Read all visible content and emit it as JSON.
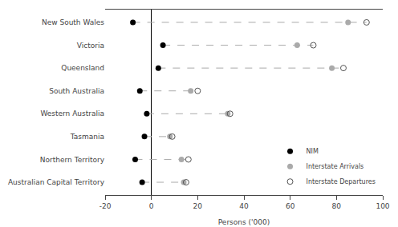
{
  "chart_data": {
    "type": "dot",
    "categories": [
      "New South Wales",
      "Victoria",
      "Queensland",
      "South Australia",
      "Western Australia",
      "Tasmania",
      "Northern Territory",
      "Australian Capital Territory"
    ],
    "series": [
      {
        "name": "NIM",
        "color": "#000000",
        "marker": "circle",
        "values": [
          -8,
          5,
          3,
          -5,
          -2,
          -3,
          -7,
          -4
        ]
      },
      {
        "name": "Interstate Arrivals",
        "color": "#aaaaaa",
        "marker": "circle",
        "values": [
          85,
          63,
          78,
          17,
          33,
          8,
          13,
          14
        ]
      },
      {
        "name": "Interstate Departures",
        "color": "#555555",
        "marker": "circle-open",
        "values": [
          93,
          70,
          83,
          20,
          34,
          9,
          16,
          15
        ]
      }
    ],
    "xlabel": "Persons ('000)",
    "xlim": [
      -20,
      100
    ],
    "xticks": [
      -20,
      0,
      20,
      40,
      60,
      80,
      100
    ],
    "line_style": "dashed",
    "color": "#aaaaaa",
    "legend": "lower right",
    "grid": false
  }
}
